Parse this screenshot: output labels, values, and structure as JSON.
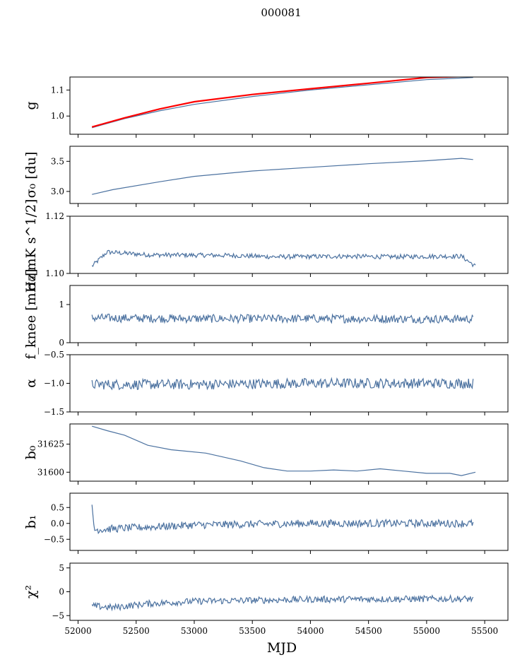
{
  "figure_title": "000081",
  "chart_data": [
    {
      "type": "line",
      "ylabel": "g",
      "ylim": [
        0.93,
        1.15
      ],
      "yticks": [
        1.0,
        1.1
      ],
      "ytick_labels": [
        "1.0",
        "1.1"
      ],
      "series": [
        {
          "color": "#4c72a0",
          "x": [
            52120,
            52200,
            52400,
            52700,
            53000,
            53500,
            54000,
            54500,
            55000,
            55400
          ],
          "y": [
            0.955,
            0.965,
            0.99,
            1.02,
            1.045,
            1.075,
            1.1,
            1.12,
            1.14,
            1.148
          ]
        },
        {
          "color": "#ff0000",
          "x": [
            52120,
            52200,
            52400,
            52700,
            53000,
            53500,
            54000,
            54500,
            55000,
            55300
          ],
          "y": [
            0.958,
            0.968,
            0.993,
            1.027,
            1.055,
            1.083,
            1.105,
            1.126,
            1.148,
            1.152
          ]
        }
      ]
    },
    {
      "type": "line",
      "ylabel": "σ₀ [du]",
      "ylim": [
        2.8,
        3.75
      ],
      "yticks": [
        3.0,
        3.5
      ],
      "ytick_labels": [
        "3.0",
        "3.5"
      ],
      "series": [
        {
          "color": "#4c72a0",
          "x": [
            52120,
            52300,
            52700,
            53000,
            53500,
            54000,
            54500,
            55000,
            55300,
            55400
          ],
          "y": [
            2.95,
            3.03,
            3.16,
            3.25,
            3.34,
            3.4,
            3.46,
            3.51,
            3.55,
            3.53
          ]
        }
      ]
    },
    {
      "type": "line",
      "ylabel": "σ₀[mK s^1/2]",
      "ylim": [
        1.1,
        1.12
      ],
      "yticks": [
        1.1,
        1.12
      ],
      "ytick_labels": [
        "1.10",
        "1.12"
      ],
      "series": [
        {
          "color": "#4c72a0",
          "base": [
            [
              52120,
              1.1025
            ],
            [
              52250,
              1.1075
            ],
            [
              52600,
              1.1065
            ],
            [
              53300,
              1.1063
            ],
            [
              53700,
              1.1058
            ],
            [
              54300,
              1.106
            ],
            [
              54700,
              1.1058
            ],
            [
              55100,
              1.106
            ],
            [
              55300,
              1.106
            ],
            [
              55420,
              1.1025
            ]
          ],
          "noise": 0.0008
        }
      ]
    },
    {
      "type": "line",
      "ylabel": "f_knee [mHz]",
      "ylim": [
        0,
        1.5
      ],
      "yticks": [
        0,
        1
      ],
      "ytick_labels": [
        "0",
        "1"
      ],
      "series": [
        {
          "color": "#4c72a0",
          "base": [
            [
              52120,
              0.65
            ],
            [
              53000,
              0.63
            ],
            [
              54000,
              0.63
            ],
            [
              55400,
              0.62
            ]
          ],
          "noise": 0.11
        }
      ]
    },
    {
      "type": "line",
      "ylabel": "α",
      "ylim": [
        -1.5,
        -0.5
      ],
      "yticks": [
        -1.5,
        -1.0,
        -0.5
      ],
      "ytick_labels": [
        "−1.5",
        "−1.0",
        "−0.5"
      ],
      "series": [
        {
          "color": "#4c72a0",
          "base": [
            [
              52120,
              -1.02
            ],
            [
              53000,
              -1.02
            ],
            [
              54000,
              -1.0
            ],
            [
              55400,
              -1.0
            ]
          ],
          "noise": 0.09
        }
      ]
    },
    {
      "type": "line",
      "ylabel": "b₀",
      "ylim": [
        31592,
        31643
      ],
      "yticks": [
        31600,
        31625
      ],
      "ytick_labels": [
        "31600",
        "31625"
      ],
      "series": [
        {
          "color": "#4c72a0",
          "x": [
            52120,
            52250,
            52400,
            52600,
            52800,
            53100,
            53400,
            53600,
            53800,
            54000,
            54200,
            54400,
            54600,
            54800,
            55000,
            55200,
            55300,
            55420
          ],
          "y": [
            31641,
            31637,
            31633,
            31624,
            31620,
            31617,
            31610,
            31604,
            31601,
            31601,
            31602,
            31601,
            31603,
            31601,
            31599,
            31599,
            31597,
            31600
          ]
        }
      ]
    },
    {
      "type": "line",
      "ylabel": "b₁",
      "ylim": [
        -0.85,
        0.95
      ],
      "yticks": [
        -0.5,
        0.0,
        0.5
      ],
      "ytick_labels": [
        "−0.5",
        "0.0",
        "0.5"
      ],
      "series": [
        {
          "color": "#4c72a0",
          "base": [
            [
              52120,
              0.5
            ],
            [
              52140,
              -0.2
            ],
            [
              52400,
              -0.15
            ],
            [
              53000,
              -0.05
            ],
            [
              54000,
              0.0
            ],
            [
              55000,
              0.0
            ],
            [
              55400,
              0.0
            ]
          ],
          "noise": 0.12
        }
      ]
    },
    {
      "type": "line",
      "ylabel": "χ²",
      "ylim": [
        -6,
        6
      ],
      "yticks": [
        -5,
        0,
        5
      ],
      "ytick_labels": [
        "−5",
        "0",
        "5"
      ],
      "xlabel": "MJD",
      "xticks": [
        52000,
        52500,
        53000,
        53500,
        54000,
        54500,
        55000,
        55500
      ],
      "xtick_labels": [
        "52000",
        "52500",
        "53000",
        "53500",
        "54000",
        "54500",
        "55000",
        "55500"
      ],
      "series": [
        {
          "color": "#4c72a0",
          "base": [
            [
              52120,
              -3.0
            ],
            [
              52300,
              -3.3
            ],
            [
              52600,
              -2.5
            ],
            [
              53000,
              -2.0
            ],
            [
              53500,
              -1.8
            ],
            [
              54000,
              -1.6
            ],
            [
              55000,
              -1.5
            ],
            [
              55400,
              -1.5
            ]
          ],
          "noise": 0.7
        }
      ]
    }
  ],
  "xlim": [
    51930,
    55700
  ]
}
